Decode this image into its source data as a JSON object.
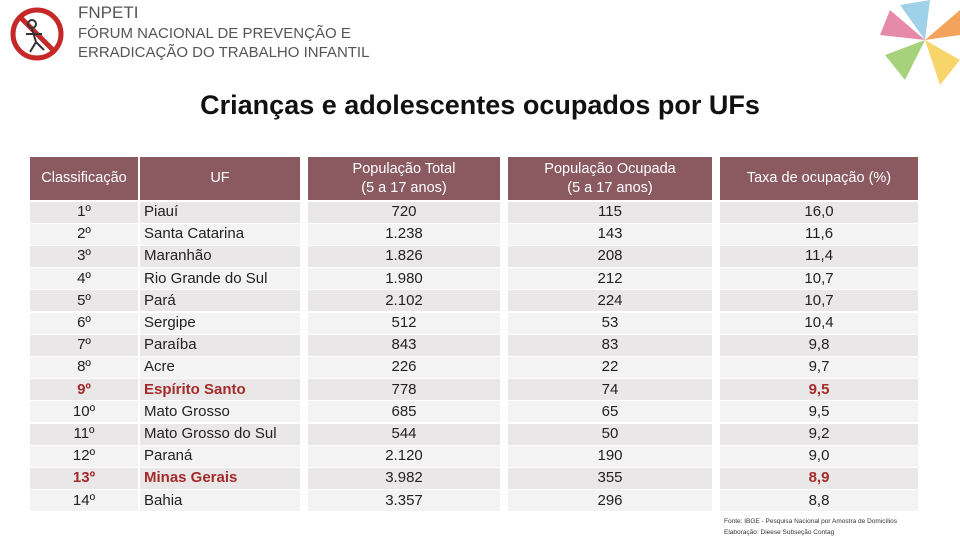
{
  "header": {
    "acronym": "FNPETI",
    "line1": "FÓRUM NACIONAL DE PREVENÇÃO E",
    "line2": "ERRADICAÇÃO DO TRABALHO INFANTIL"
  },
  "title": "Crianças e adolescentes ocupados por UFs",
  "table": {
    "columns": [
      [
        "Classificação"
      ],
      [
        "UF"
      ],
      [
        "População Total",
        "(5 a 17 anos)"
      ],
      [
        "População Ocupada",
        "(5 a 17 anos)"
      ],
      [
        "Taxa de ocupação (%)"
      ]
    ],
    "rows": [
      [
        "1º",
        "Piauí",
        "720",
        "115",
        "16,0"
      ],
      [
        "2º",
        "Santa Catarina",
        "1.238",
        "143",
        "11,6"
      ],
      [
        "3º",
        "Maranhão",
        "1.826",
        "208",
        "11,4"
      ],
      [
        "4º",
        "Rio Grande do Sul",
        "1.980",
        "212",
        "10,7"
      ],
      [
        "5º",
        "Pará",
        "2.102",
        "224",
        "10,7"
      ],
      [
        "6º",
        "Sergipe",
        "512",
        "53",
        "10,4"
      ],
      [
        "7º",
        "Paraíba",
        "843",
        "83",
        "9,8"
      ],
      [
        "8º",
        "Acre",
        "226",
        "22",
        "9,7"
      ],
      [
        "9º",
        "Espírito Santo",
        "778",
        "74",
        "9,5"
      ],
      [
        "10º",
        "Mato Grosso",
        "685",
        "65",
        "9,5"
      ],
      [
        "11º",
        "Mato Grosso do Sul",
        "544",
        "50",
        "9,2"
      ],
      [
        "12º",
        "Paraná",
        "2.120",
        "190",
        "9,0"
      ],
      [
        "13º",
        "Minas Gerais",
        "3.982",
        "355",
        "8,9"
      ],
      [
        "14º",
        "Bahia",
        "3.357",
        "296",
        "8,8"
      ]
    ],
    "highlighted_rows": [
      8,
      12
    ]
  },
  "footer": {
    "source": "Fonte: IBGE - Pesquisa Nacional por Amostra de Domicílios",
    "credit": "Elaboração: Dieese Subseção Contag"
  }
}
